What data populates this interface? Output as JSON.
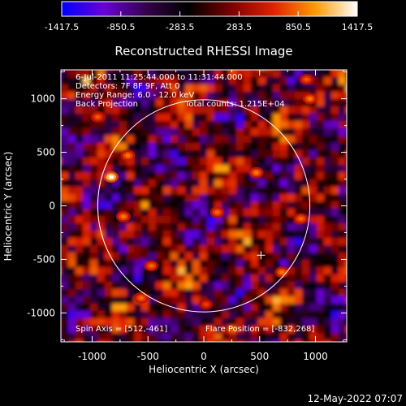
{
  "window": {
    "background": "#000000",
    "timestamp": "12-May-2022 07:07"
  },
  "chart_data": {
    "type": "heatmap",
    "title": "Reconstructed RHESSI Image",
    "xlabel": "Heliocentric X (arcsec)",
    "ylabel": "Heliocentric Y (arcsec)",
    "xlim": [
      -1280,
      1280
    ],
    "ylim": [
      -1270,
      1270
    ],
    "x_ticks": [
      -1000,
      -500,
      0,
      500,
      1000
    ],
    "y_ticks": [
      -1000,
      -500,
      0,
      500,
      1000
    ],
    "colorbar": {
      "range": [
        -1417.5,
        1417.5
      ],
      "ticks": [
        -1417.5,
        -850.5,
        -283.5,
        283.5,
        850.5,
        1417.5
      ],
      "tick_labels": [
        "-1417.5",
        "-850.5",
        "-283.5",
        "283.5",
        "850.5",
        "1417.5"
      ],
      "stops": [
        "#0000ff",
        "#6a00d8",
        "#34004a",
        "#000000",
        "#7a0000",
        "#e02000",
        "#ff9a00",
        "#ffffff"
      ]
    },
    "annotations": {
      "time_range": "6-Jul-2011 11:25:44.000 to 11:31:44.000",
      "detectors": "Detectors: 7F 8F 9F, Att 0",
      "energy": "Energy Range: 6.0 - 12.0 keV",
      "method": "Back Projection",
      "total_counts": "Total counts: 1.215E+04",
      "spin_axis": "Spin Axis = [512,-461]",
      "flare_position": "Flare Position = [-832,268]"
    },
    "solar_limb": {
      "center": [
        0,
        0
      ],
      "radius": 950
    },
    "spin_axis_marker": [
      512,
      -461
    ],
    "bright_sources": [
      {
        "x": -830,
        "y": 270,
        "intensity": 1417.5
      },
      {
        "x": -680,
        "y": 470,
        "intensity": 900
      },
      {
        "x": -950,
        "y": 830,
        "intensity": 800
      },
      {
        "x": -720,
        "y": -100,
        "intensity": 900
      },
      {
        "x": -470,
        "y": -560,
        "intensity": 850
      },
      {
        "x": 120,
        "y": -60,
        "intensity": 850
      },
      {
        "x": 470,
        "y": 310,
        "intensity": 900
      },
      {
        "x": 950,
        "y": 1000,
        "intensity": 900
      },
      {
        "x": 870,
        "y": -120,
        "intensity": 850
      },
      {
        "x": 700,
        "y": -620,
        "intensity": 900
      },
      {
        "x": -560,
        "y": -860,
        "intensity": 850
      },
      {
        "x": 20,
        "y": -920,
        "intensity": 700
      },
      {
        "x": 920,
        "y": 1180,
        "intensity": 800
      }
    ]
  }
}
